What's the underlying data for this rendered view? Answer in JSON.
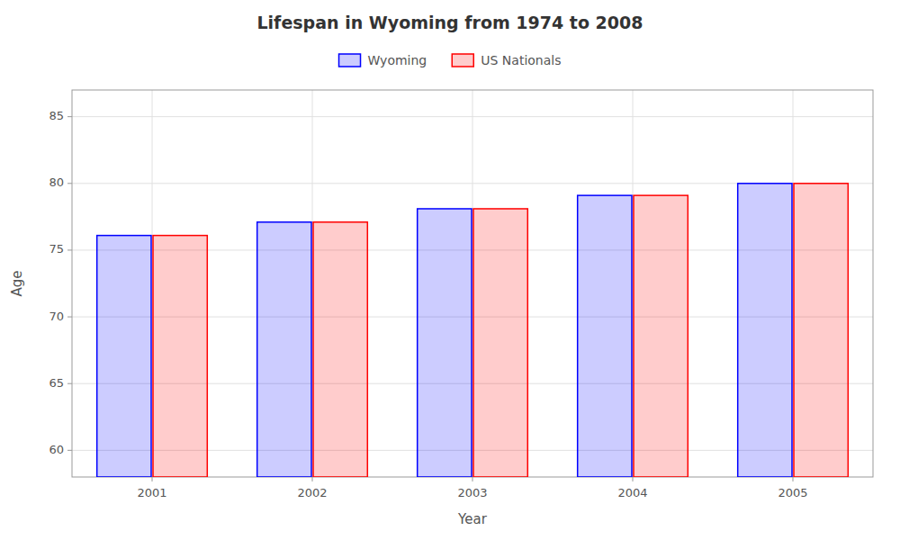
{
  "chart_data": {
    "type": "bar",
    "title": "Lifespan in Wyoming from 1974 to 2008",
    "categories": [
      "2001",
      "2002",
      "2003",
      "2004",
      "2005"
    ],
    "series": [
      {
        "name": "Wyoming",
        "color": "#0000ff",
        "values": [
          76.1,
          77.1,
          78.1,
          79.1,
          80.0
        ]
      },
      {
        "name": "US Nationals",
        "color": "#ff0000",
        "values": [
          76.1,
          77.1,
          78.1,
          79.1,
          80.0
        ]
      }
    ],
    "x_label": "Year",
    "y_label": "Age",
    "ylim": [
      58,
      87
    ],
    "yticks": [
      60,
      65,
      70,
      75,
      80,
      85
    ],
    "grid": true,
    "legend": "top"
  }
}
